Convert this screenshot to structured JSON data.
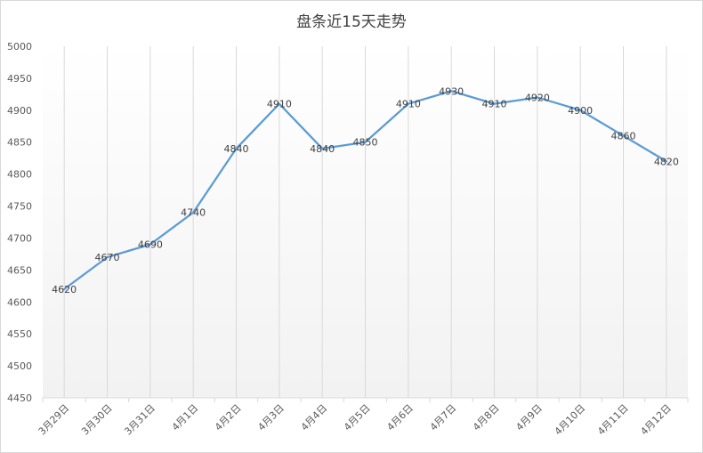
{
  "chart_data": {
    "type": "line",
    "title": "盘条近15天走势",
    "xlabel": "",
    "ylabel": "",
    "categories": [
      "3月29日",
      "3月30日",
      "3月31日",
      "4月1日",
      "4月2日",
      "4月3日",
      "4月4日",
      "4月5日",
      "4月6日",
      "4月7日",
      "4月8日",
      "4月9日",
      "4月10日",
      "4月11日",
      "4月12日"
    ],
    "series": [
      {
        "values": [
          4620,
          4670,
          4690,
          4740,
          4840,
          4910,
          4840,
          4850,
          4910,
          4930,
          4910,
          4920,
          4900,
          4860,
          4820
        ]
      }
    ],
    "ylim": [
      4450,
      5000
    ],
    "ytick_step": 50,
    "grid": "vertical",
    "legend": "none",
    "line_color": "#5b9bd5",
    "grid_color": "#d9d9d9",
    "plot_gradient": [
      "#ffffff",
      "#f2f2f2"
    ]
  }
}
